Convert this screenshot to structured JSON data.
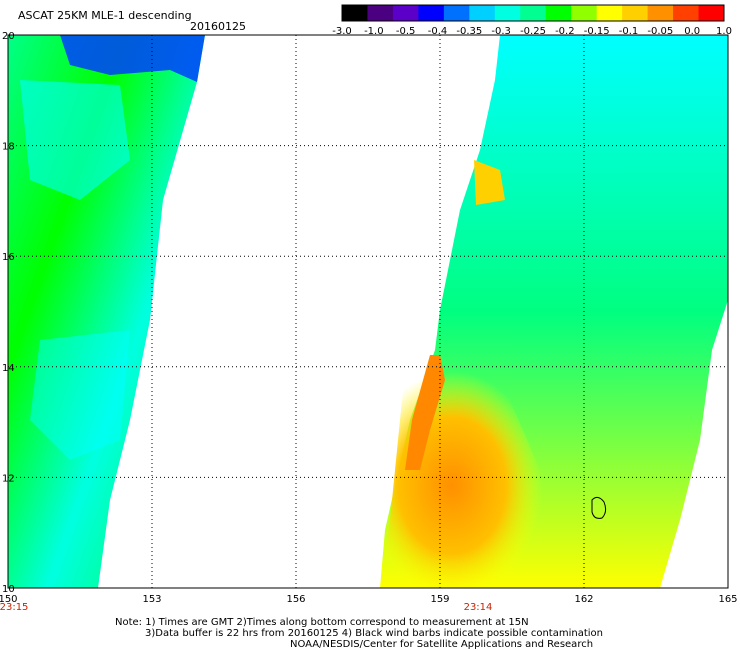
{
  "header": {
    "title": "ASCAT 25KM MLE-1 descending",
    "date": "20160125"
  },
  "colorbar": {
    "colors": [
      "#000000",
      "#4b0082",
      "#5a00c8",
      "#0000ff",
      "#0070ff",
      "#00d0ff",
      "#00ffe0",
      "#00ff90",
      "#00ff00",
      "#90ff00",
      "#ffff00",
      "#ffd000",
      "#ff9000",
      "#ff4000",
      "#ff0000"
    ],
    "labels": [
      "-3.0",
      "-1.0",
      "-0.5",
      "-0.4",
      "-0.35",
      "-0.3",
      "-0.25",
      "-0.2",
      "-0.15",
      "-0.1",
      "-0.05",
      "0.0",
      "1.0"
    ]
  },
  "map": {
    "lon_ticks": [
      "150",
      "153",
      "156",
      "159",
      "162",
      "165"
    ],
    "lat_ticks": [
      "10",
      "12",
      "14",
      "16",
      "18",
      "20"
    ],
    "times": [
      "23:15",
      "23:14"
    ],
    "colors": {
      "blue": "#0000ff",
      "cyan": "#00ffff",
      "green": "#00ff00",
      "yellow": "#ffff00",
      "orange": "#ff9000",
      "white": "#ffffff"
    }
  },
  "notes": {
    "line1": "Note: 1) Times are GMT 2)Times along bottom correspond to measurement at 15N",
    "line2": "3)Data buffer is 22 hrs from 20160125 4) Black wind barbs indicate possible contamination",
    "line3": "NOAA/NESDIS/Center for Satellite Applications and Research"
  }
}
